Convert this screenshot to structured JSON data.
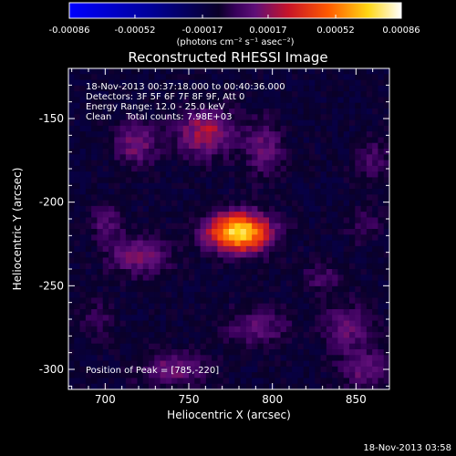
{
  "chart_data": {
    "type": "heatmap",
    "title": "Reconstructed RHESSI Image",
    "xlabel": "Heliocentric X (arcsec)",
    "ylabel": "Heliocentric Y (arcsec)",
    "xlim": [
      678,
      870
    ],
    "ylim": [
      -312,
      -120
    ],
    "x_ticks": [
      700,
      750,
      800,
      850
    ],
    "y_ticks": [
      -150,
      -200,
      -250,
      -300
    ],
    "colorbar": {
      "ticks": [
        "-0.00086",
        "-0.00052",
        "-0.00017",
        "0.00017",
        "0.00052",
        "0.00086"
      ],
      "tick_values": [
        -0.00086,
        -0.00052,
        -0.00017,
        0.00017,
        0.00052,
        0.00086
      ],
      "unit_label": "(photons cm⁻² s⁻¹ asec⁻²)",
      "range": [
        -0.00086,
        0.00086
      ]
    },
    "info_lines": [
      "18-Nov-2013 00:37:18.000 to 00:40:36.000",
      "Detectors: 3F 5F 6F 7F 8F 9F, Att 0",
      "Energy Range: 12.0 - 25.0 keV",
      "Clean     Total counts: 7.98E+03"
    ],
    "peak_label": "Position of Peak = [785,-220]",
    "peak_position": [
      785,
      -220
    ],
    "sources": [
      {
        "x": 780,
        "y": -218,
        "sx": 13,
        "sy": 8,
        "amplitude": 0.00086
      },
      {
        "x": 760,
        "y": -158,
        "sx": 12,
        "sy": 10,
        "amplitude": 0.00035
      },
      {
        "x": 718,
        "y": -165,
        "sx": 9,
        "sy": 9,
        "amplitude": 0.00026
      },
      {
        "x": 795,
        "y": -168,
        "sx": 8,
        "sy": 12,
        "amplitude": 0.00022
      },
      {
        "x": 720,
        "y": -232,
        "sx": 12,
        "sy": 8,
        "amplitude": 0.00028
      },
      {
        "x": 700,
        "y": -212,
        "sx": 7,
        "sy": 8,
        "amplitude": 0.00018
      },
      {
        "x": 790,
        "y": -275,
        "sx": 14,
        "sy": 8,
        "amplitude": 0.0002
      },
      {
        "x": 740,
        "y": -300,
        "sx": 14,
        "sy": 7,
        "amplitude": 0.00024
      },
      {
        "x": 845,
        "y": -275,
        "sx": 10,
        "sy": 10,
        "amplitude": 0.00022
      },
      {
        "x": 855,
        "y": -300,
        "sx": 10,
        "sy": 8,
        "amplitude": 0.00022
      },
      {
        "x": 695,
        "y": -270,
        "sx": 7,
        "sy": 7,
        "amplitude": 0.00016
      },
      {
        "x": 830,
        "y": -245,
        "sx": 8,
        "sy": 6,
        "amplitude": 0.00015
      },
      {
        "x": 860,
        "y": -175,
        "sx": 8,
        "sy": 10,
        "amplitude": 0.00014
      },
      {
        "x": 855,
        "y": -215,
        "sx": 7,
        "sy": 7,
        "amplitude": 0.00013
      }
    ],
    "background_level": -0.00012
  },
  "footer": {
    "timestamp": "18-Nov-2013 03:58"
  }
}
